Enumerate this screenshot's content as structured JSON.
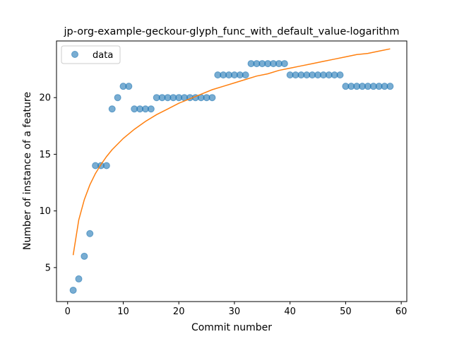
{
  "chart_data": {
    "type": "scatter",
    "title": "jp-org-example-geckour-glyph_func_with_default_value-logarithm",
    "xlabel": "Commit number",
    "ylabel": "Number of instance of a feature",
    "xlim": [
      -2,
      61
    ],
    "ylim": [
      2,
      25
    ],
    "xticks": [
      0,
      10,
      20,
      30,
      40,
      50,
      60
    ],
    "yticks": [
      5,
      10,
      15,
      20
    ],
    "grid": false,
    "legend": {
      "placement": "top-left",
      "entries": [
        "data"
      ]
    },
    "series": [
      {
        "name": "data",
        "kind": "scatter",
        "color": "#1f77b4",
        "x": [
          1,
          2,
          3,
          4,
          5,
          6,
          7,
          8,
          9,
          10,
          11,
          12,
          13,
          14,
          15,
          16,
          17,
          18,
          19,
          20,
          21,
          22,
          23,
          24,
          25,
          26,
          27,
          28,
          29,
          30,
          31,
          32,
          33,
          34,
          35,
          36,
          37,
          38,
          39,
          40,
          41,
          42,
          43,
          44,
          45,
          46,
          47,
          48,
          49,
          50,
          51,
          52,
          53,
          54,
          55,
          56,
          57,
          58
        ],
        "y": [
          3,
          4,
          6,
          8,
          14,
          14,
          14,
          19,
          20,
          21,
          21,
          19,
          19,
          19,
          19,
          20,
          20,
          20,
          20,
          20,
          20,
          20,
          20,
          20,
          20,
          20,
          22,
          22,
          22,
          22,
          22,
          22,
          23,
          23,
          23,
          23,
          23,
          23,
          23,
          22,
          22,
          22,
          22,
          22,
          22,
          22,
          22,
          22,
          22,
          21,
          21,
          21,
          21,
          21,
          21,
          21,
          21,
          21
        ]
      },
      {
        "kind": "line",
        "color": "#ff7f0e",
        "x": [
          1,
          2,
          3,
          4,
          5,
          6,
          7,
          8,
          9,
          10,
          12,
          14,
          16,
          18,
          20,
          22,
          24,
          26,
          28,
          30,
          32,
          34,
          36,
          38,
          40,
          42,
          44,
          46,
          48,
          50,
          52,
          54,
          56,
          58
        ],
        "y": [
          6.1,
          9.2,
          11.0,
          12.3,
          13.3,
          14.1,
          14.8,
          15.4,
          15.9,
          16.4,
          17.2,
          17.9,
          18.5,
          19.0,
          19.5,
          19.9,
          20.3,
          20.7,
          21.0,
          21.3,
          21.6,
          21.9,
          22.1,
          22.4,
          22.6,
          22.8,
          23.0,
          23.2,
          23.4,
          23.6,
          23.8,
          23.9,
          24.1,
          24.3
        ]
      }
    ]
  }
}
